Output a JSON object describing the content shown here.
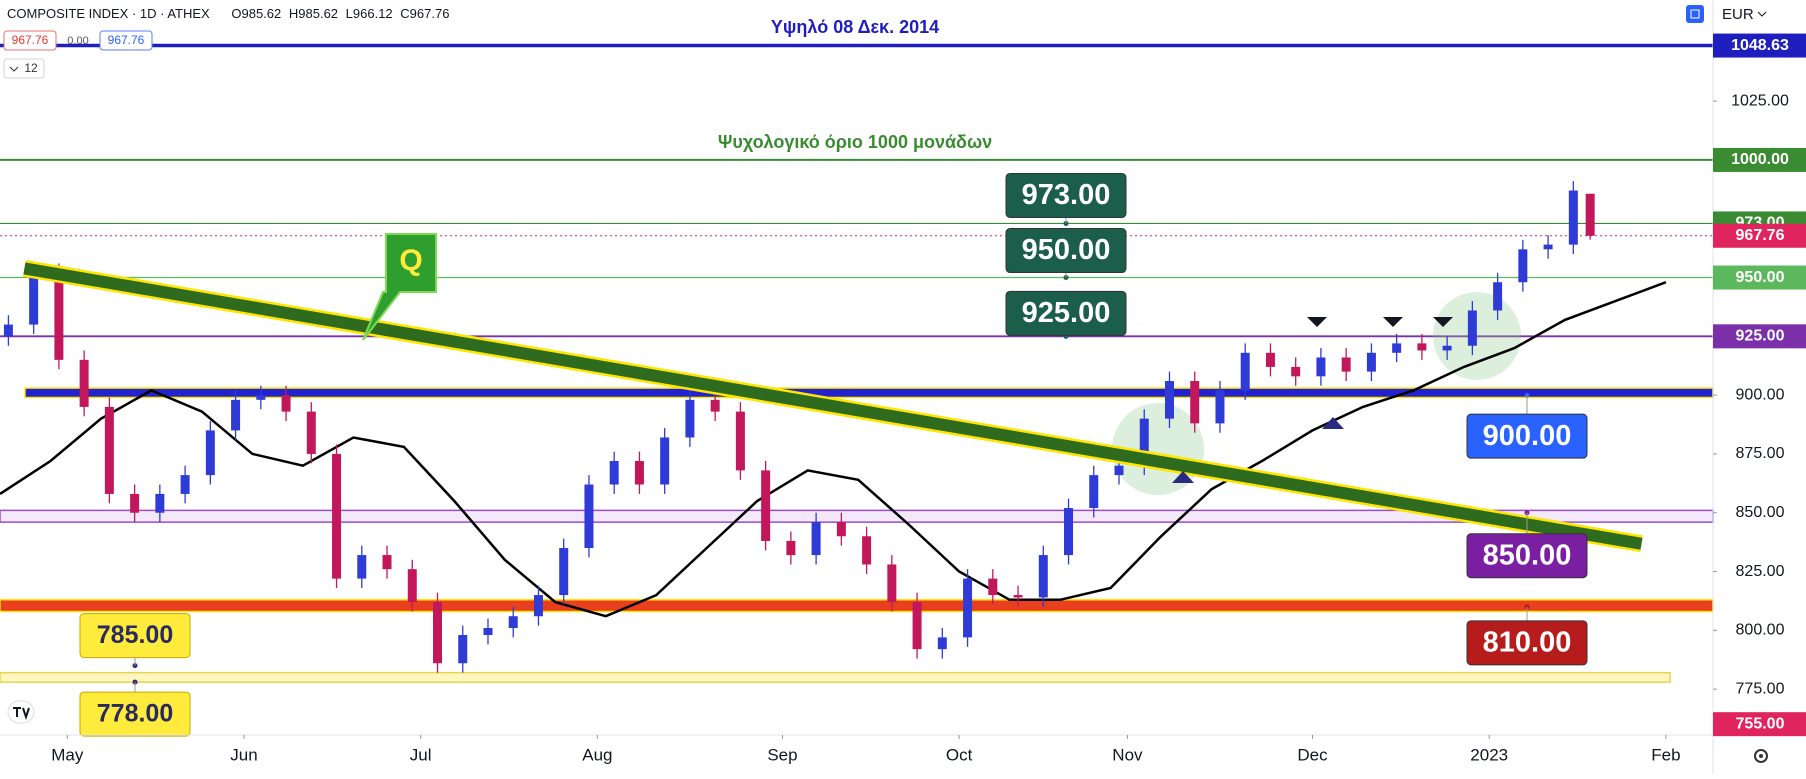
{
  "header": {
    "symbol": "COMPOSITE INDEX · 1D · ATHEX",
    "ohlc_prefixes": [
      "O",
      "H",
      "L",
      "C"
    ],
    "sell": "967.76",
    "spread": "0.00",
    "buy": "967.76",
    "count": "12",
    "currency": "EUR"
  },
  "chart_data": {
    "type": "candlestick",
    "x": [
      -7,
      -4,
      -1,
      2,
      5,
      8,
      11,
      14,
      17,
      20,
      23,
      26,
      29,
      32,
      35,
      38,
      41,
      44,
      47,
      50,
      53,
      56,
      59,
      62,
      65,
      68,
      71,
      74,
      77,
      80,
      83,
      86,
      89,
      92,
      95,
      98,
      101,
      104,
      107,
      110,
      113,
      116,
      119,
      122,
      125,
      128,
      131,
      134,
      137,
      140,
      143,
      146,
      149,
      152,
      155,
      158,
      161,
      164,
      167,
      170,
      173,
      176,
      179,
      181
    ],
    "open": [
      925,
      930,
      952,
      915,
      895,
      858,
      850,
      858,
      866,
      885,
      898,
      900,
      893,
      875,
      822,
      832,
      826,
      812,
      786,
      798,
      801,
      806,
      815,
      835,
      862,
      872,
      862,
      882,
      898,
      893,
      868,
      838,
      832,
      846,
      840,
      828,
      812,
      792,
      797,
      822,
      815,
      814,
      832,
      852,
      866,
      870,
      890,
      906,
      888,
      902,
      918,
      912,
      908,
      916,
      910,
      918,
      922,
      919,
      921,
      936,
      948,
      962,
      964,
      985.62
    ],
    "high": [
      934,
      956,
      956,
      919,
      899,
      862,
      862,
      870,
      889,
      902,
      904,
      904,
      897,
      879,
      836,
      836,
      830,
      816,
      802,
      805,
      810,
      819,
      839,
      866,
      876,
      876,
      886,
      902,
      902,
      897,
      872,
      842,
      850,
      850,
      844,
      832,
      816,
      801,
      826,
      826,
      819,
      836,
      856,
      870,
      874,
      894,
      910,
      910,
      906,
      922,
      922,
      916,
      920,
      920,
      922,
      926,
      926,
      925,
      940,
      952,
      966,
      968,
      991,
      985.62
    ],
    "low": [
      921,
      926,
      911,
      891,
      854,
      846,
      846,
      854,
      862,
      881,
      894,
      889,
      871,
      818,
      818,
      822,
      808,
      782,
      782,
      794,
      797,
      802,
      811,
      831,
      858,
      858,
      858,
      878,
      889,
      864,
      834,
      828,
      828,
      836,
      824,
      808,
      788,
      788,
      793,
      811,
      810,
      810,
      828,
      848,
      862,
      866,
      886,
      884,
      884,
      898,
      908,
      904,
      904,
      906,
      906,
      914,
      915,
      915,
      917,
      932,
      944,
      958,
      960,
      966.12
    ],
    "close": [
      930,
      952,
      915,
      895,
      858,
      850,
      858,
      866,
      885,
      898,
      900,
      893,
      875,
      822,
      832,
      826,
      812,
      786,
      798,
      801,
      806,
      815,
      835,
      862,
      872,
      862,
      882,
      898,
      893,
      868,
      838,
      832,
      846,
      840,
      828,
      812,
      792,
      797,
      822,
      815,
      814,
      832,
      852,
      866,
      870,
      890,
      906,
      888,
      902,
      918,
      912,
      908,
      916,
      910,
      918,
      922,
      919,
      921,
      936,
      948,
      962,
      964,
      987,
      967.76
    ],
    "up_color": "#2f3bd6",
    "down_color": "#c2185b",
    "xlim": [
      -8,
      195.6
    ],
    "xticks": [
      {
        "value": 0,
        "label": "May"
      },
      {
        "value": 21,
        "label": "Jun"
      },
      {
        "value": 42,
        "label": "Jul"
      },
      {
        "value": 63,
        "label": "Aug"
      },
      {
        "value": 85,
        "label": "Sep"
      },
      {
        "value": 106,
        "label": "Oct"
      },
      {
        "value": 126,
        "label": "Nov"
      },
      {
        "value": 148,
        "label": "Dec"
      },
      {
        "value": 169,
        "label": "2023"
      },
      {
        "value": 190,
        "label": "Feb"
      }
    ],
    "ylim": [
      755.5,
      1068
    ],
    "yticks": [
      {
        "value": 775,
        "label": "775.00"
      },
      {
        "value": 800,
        "label": "800.00"
      },
      {
        "value": 825,
        "label": "825.00"
      },
      {
        "value": 850,
        "label": "850.00"
      },
      {
        "value": 875,
        "label": "875.00"
      },
      {
        "value": 900,
        "label": "900.00"
      },
      {
        "value": 1025,
        "label": "1025.00"
      }
    ],
    "moving_average": {
      "x": [
        -8,
        -2,
        4,
        10,
        16,
        22,
        28,
        34,
        40,
        46,
        52,
        58,
        64,
        70,
        76,
        82,
        88,
        94,
        100,
        106,
        112,
        118,
        124,
        130,
        136,
        142,
        148,
        154,
        160,
        166,
        172,
        178,
        184,
        190
      ],
      "values": [
        858,
        872,
        890,
        902,
        893,
        875,
        870,
        882,
        878,
        855,
        830,
        812,
        806,
        815,
        835,
        855,
        868,
        864,
        845,
        825,
        813,
        813,
        818,
        840,
        860,
        872,
        885,
        895,
        902,
        912,
        920,
        932,
        940,
        948
      ],
      "color": "#000000"
    },
    "trendline": {
      "x": [
        -5.1,
        187.1
      ],
      "values": [
        953.9,
        836.8
      ],
      "color": "#2e6b1e"
    },
    "levels": [
      {
        "value": 1048.63,
        "label": "1048.63",
        "color": "#1f1fbf",
        "text": "Υψηλό  08 Δεκ. 2014"
      },
      {
        "value": 1000,
        "label": "1000.00",
        "color": "#3a8c32",
        "text": "Ψυχολογικό όριο 1000 μονάδων"
      },
      {
        "value": 973,
        "label": "973.00",
        "color": "#3a8c32"
      },
      {
        "value": 967.76,
        "label": "967.76",
        "color": "#e0245e",
        "dotted": true
      },
      {
        "value": 950,
        "label": "950.00",
        "color": "#5cb85c"
      },
      {
        "value": 925,
        "label": "925.00",
        "color": "#7b2fa8"
      }
    ],
    "axis_marker": {
      "value": 755,
      "label": "755.00",
      "color": "#e0245e"
    },
    "zones": [
      {
        "low": 899,
        "high": 903,
        "color": "#2222d0"
      },
      {
        "low": 846,
        "high": 851,
        "color": "#f3e9fa"
      },
      {
        "low": 808,
        "high": 813,
        "color": "#e8401f"
      },
      {
        "low": 778,
        "high": 782,
        "color": "#fff7c0"
      }
    ],
    "callouts": [
      {
        "value": 973,
        "label": "973.00",
        "color": "#1b5e4a"
      },
      {
        "value": 950,
        "label": "950.00",
        "color": "#1b5e4a"
      },
      {
        "value": 925,
        "label": "925.00",
        "color": "#1b5e4a"
      },
      {
        "value": 900,
        "label": "900.00",
        "color": "#2962ff"
      },
      {
        "value": 850,
        "label": "850.00",
        "color": "#7b1fa2"
      },
      {
        "value": 810,
        "label": "810.00",
        "color": "#b71c1c"
      },
      {
        "value": 785,
        "label": "785.00",
        "color": "#ffeb3b"
      },
      {
        "value": 778,
        "label": "778.00",
        "color": "#ffeb3b"
      }
    ],
    "note_q": "Q"
  }
}
